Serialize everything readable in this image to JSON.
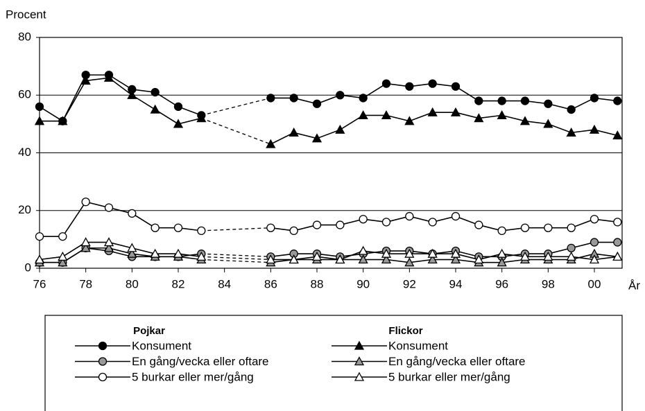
{
  "chart_data": {
    "type": "line",
    "y_label": "Procent",
    "x_label": "År",
    "x": [
      1976,
      1977,
      1978,
      1979,
      1980,
      1981,
      1982,
      1983,
      1986,
      1987,
      1988,
      1989,
      1990,
      1991,
      1992,
      1993,
      1994,
      1995,
      1996,
      1997,
      1998,
      1999,
      2000,
      2001
    ],
    "xlim": [
      1976,
      2001.2
    ],
    "xticks": [
      {
        "value": 1976,
        "label": "76"
      },
      {
        "value": 1978,
        "label": "78"
      },
      {
        "value": 1980,
        "label": "80"
      },
      {
        "value": 1982,
        "label": "82"
      },
      {
        "value": 1984,
        "label": "84"
      },
      {
        "value": 1986,
        "label": "86"
      },
      {
        "value": 1988,
        "label": "88"
      },
      {
        "value": 1990,
        "label": "90"
      },
      {
        "value": 1992,
        "label": "92"
      },
      {
        "value": 1994,
        "label": "94"
      },
      {
        "value": 1996,
        "label": "96"
      },
      {
        "value": 1998,
        "label": "98"
      },
      {
        "value": 2000,
        "label": "00"
      }
    ],
    "ylim": [
      0,
      80
    ],
    "yticks": [
      0,
      20,
      40,
      60,
      80
    ],
    "grid": true,
    "legend_titles": [
      "Pojkar",
      "Flickor"
    ],
    "series": [
      {
        "name": "Konsument",
        "color": "#000000",
        "marker": "circle",
        "marker_fill": "#000000",
        "values": [
          56,
          51,
          67,
          67,
          62,
          61,
          56,
          53,
          59,
          59,
          57,
          60,
          59,
          64,
          63,
          64,
          63,
          58,
          58,
          58,
          57,
          55,
          59,
          58
        ]
      },
      {
        "name": "En gång/vecka eller oftare",
        "color": "#000000",
        "marker": "circle",
        "marker_fill": "#999999",
        "values": [
          2,
          2,
          7,
          6,
          4,
          4,
          4,
          5,
          4,
          5,
          5,
          4,
          5,
          6,
          6,
          5,
          6,
          4,
          4,
          5,
          5,
          7,
          9,
          9
        ]
      },
      {
        "name": "5 burkar eller mer/gång",
        "color": "#000000",
        "marker": "circle",
        "marker_fill": "#ffffff",
        "values": [
          11,
          11,
          23,
          21,
          19,
          14,
          14,
          13,
          14,
          13,
          15,
          15,
          17,
          16,
          18,
          16,
          18,
          15,
          13,
          14,
          14,
          14,
          17,
          16
        ]
      },
      {
        "name": "Konsument",
        "color": "#000000",
        "marker": "triangle",
        "marker_fill": "#000000",
        "values": [
          51,
          51,
          65,
          66,
          60,
          55,
          50,
          52,
          43,
          47,
          45,
          48,
          53,
          53,
          51,
          54,
          54,
          52,
          53,
          51,
          50,
          47,
          48,
          46
        ]
      },
      {
        "name": "En gång/vecka eller oftare",
        "color": "#000000",
        "marker": "triangle",
        "marker_fill": "#999999",
        "values": [
          2,
          2,
          7,
          7,
          5,
          4,
          4,
          3,
          2,
          3,
          3,
          3,
          3,
          3,
          2,
          3,
          3,
          2,
          2,
          3,
          3,
          3,
          5,
          4
        ]
      },
      {
        "name": "5 burkar eller mer/gång",
        "color": "#000000",
        "marker": "triangle",
        "marker_fill": "#ffffff",
        "values": [
          3,
          4,
          9,
          9,
          7,
          5,
          5,
          4,
          3,
          3,
          4,
          3,
          6,
          5,
          5,
          5,
          5,
          3,
          5,
          4,
          4,
          4,
          3,
          4
        ]
      }
    ]
  }
}
